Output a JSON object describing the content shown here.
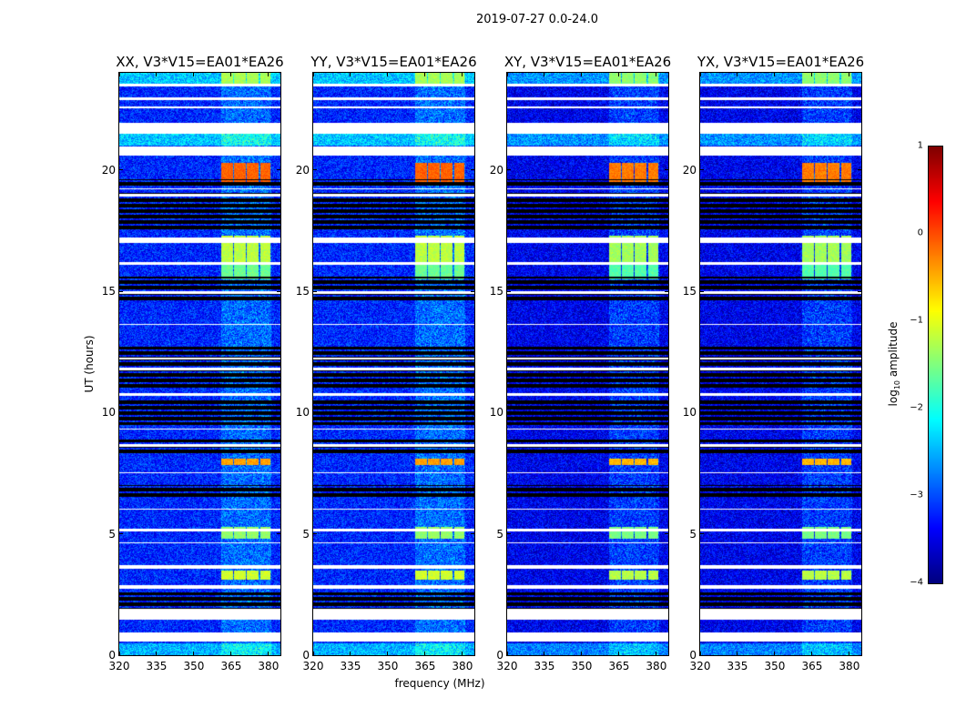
{
  "chart_data": [
    {
      "type": "heatmap",
      "title": "XX, V3*V15=EA01*EA26",
      "pol": "XX"
    },
    {
      "type": "heatmap",
      "title": "YY, V3*V15=EA01*EA26",
      "pol": "YY"
    },
    {
      "type": "heatmap",
      "title": "XY, V3*V15=EA01*EA26",
      "pol": "XY"
    },
    {
      "type": "heatmap",
      "title": "YX, V3*V15=EA01*EA26",
      "pol": "YX"
    }
  ],
  "figure": {
    "suptitle": "2019-07-27 0.0-24.0",
    "xlabel": "frequency (MHz)",
    "ylabel": "UT (hours)",
    "xlim": [
      320,
      384.8
    ],
    "ylim": [
      0,
      24
    ],
    "xticks": [
      320,
      335,
      350,
      365,
      380
    ],
    "yticks": [
      0,
      5,
      10,
      15,
      20
    ],
    "bright_channels_mhz": [
      [
        361,
        365.6
      ],
      [
        366.2,
        370.8
      ],
      [
        371.4,
        376
      ],
      [
        376.6,
        380.6
      ]
    ],
    "flagged_white_hours": [
      [
        23.45,
        23.55
      ],
      [
        22.88,
        22.98
      ],
      [
        22.55,
        22.6
      ],
      [
        21.5,
        21.95
      ],
      [
        20.6,
        20.95
      ],
      [
        19.2,
        19.25
      ],
      [
        18.9,
        19.0
      ],
      [
        17.0,
        17.2
      ],
      [
        16.1,
        16.2
      ],
      [
        14.9,
        15.0
      ],
      [
        13.6,
        13.65
      ],
      [
        12.2,
        12.25
      ],
      [
        11.75,
        11.85
      ],
      [
        10.7,
        10.8
      ],
      [
        9.3,
        9.35
      ],
      [
        8.6,
        8.7
      ],
      [
        7.5,
        7.55
      ],
      [
        6.0,
        6.05
      ],
      [
        5.1,
        5.2
      ],
      [
        4.6,
        4.65
      ],
      [
        3.55,
        3.7
      ],
      [
        2.75,
        2.9
      ],
      [
        1.45,
        1.9
      ],
      [
        0.55,
        0.95
      ]
    ],
    "flagged_black_hours": [
      [
        19.3,
        19.6
      ],
      [
        17.5,
        19.1
      ],
      [
        14.6,
        15.6
      ],
      [
        11.0,
        12.7
      ],
      [
        9.5,
        10.5
      ],
      [
        8.3,
        8.9
      ],
      [
        6.5,
        7.0
      ],
      [
        1.9,
        2.6
      ]
    ],
    "events": [
      {
        "hours": [
          19.5,
          20.3
        ],
        "log_amp": -0.1
      },
      {
        "hours": [
          7.85,
          8.1
        ],
        "log_amp": -0.4
      },
      {
        "hours": [
          16.2,
          17.3
        ],
        "log_amp": -1.2
      },
      {
        "hours": [
          15.5,
          16.1
        ],
        "log_amp": -1.6
      },
      {
        "hours": [
          3.1,
          3.5
        ],
        "log_amp": -1.1
      },
      {
        "hours": [
          4.8,
          5.3
        ],
        "log_amp": -1.4
      },
      {
        "hours": [
          23.5,
          24.0
        ],
        "log_amp": -1.3
      }
    ],
    "bright_rows": [
      {
        "hours": [
          21.0,
          21.5
        ],
        "log_amp": -2.4
      },
      {
        "hours": [
          23.55,
          24.0
        ],
        "log_amp": -2.4
      },
      {
        "hours": [
          0.0,
          0.5
        ],
        "log_amp": -2.5
      }
    ]
  },
  "colorbar": {
    "label": "log10 amplitude",
    "label_main": "log",
    "label_sub": "10",
    "label_rest": " amplitude",
    "range": [
      -4,
      1
    ],
    "ticks": [
      "1",
      "0",
      "−1",
      "−2",
      "−3",
      "−4"
    ],
    "tick_values": [
      1,
      0,
      -1,
      -2,
      -3,
      -4
    ]
  }
}
